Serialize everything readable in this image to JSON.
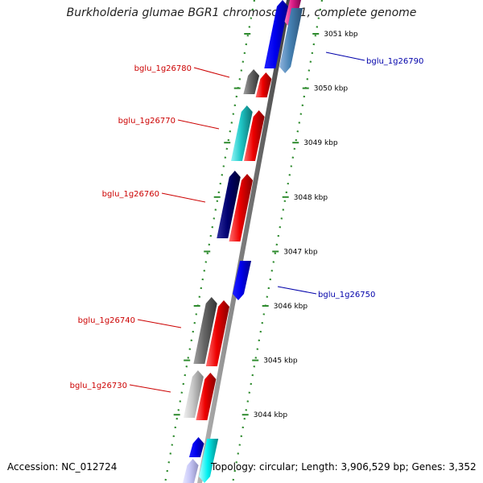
{
  "title": "Burkholderia glumae BGR1 chromosome 1, complete genome",
  "footer": {
    "accession": "Accession: NC_012724",
    "topology": "Topology: circular; Length: 3,906,529 bp; Genes: 3,352"
  },
  "colors": {
    "left_label": "#cc0000",
    "right_label": "#0000aa",
    "scale": "#2e8b2e",
    "backbone": "#808080"
  },
  "ticks": [
    {
      "label": "3051 kbp"
    },
    {
      "label": "3050 kbp"
    },
    {
      "label": "3049 kbp"
    },
    {
      "label": "3048 kbp"
    },
    {
      "label": "3047 kbp"
    },
    {
      "label": "3046 kbp"
    },
    {
      "label": "3045 kbp"
    },
    {
      "label": "3044 kbp"
    }
  ],
  "genes": [
    {
      "label": "bglu_1g26790",
      "side": "right"
    },
    {
      "label": "bglu_1g26780",
      "side": "left"
    },
    {
      "label": "bglu_1g26770",
      "side": "left"
    },
    {
      "label": "bglu_1g26760",
      "side": "left"
    },
    {
      "label": "bglu_1g26750",
      "side": "right"
    },
    {
      "label": "bglu_1g26740",
      "side": "left"
    },
    {
      "label": "bglu_1g26730",
      "side": "left"
    }
  ]
}
